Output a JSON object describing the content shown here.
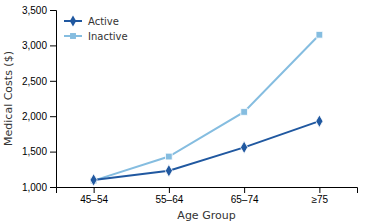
{
  "chart_data": {
    "type": "line",
    "xlabel": "Age Group",
    "ylabel": "Medical Costs ($)",
    "categories": [
      "45–54",
      "55–64",
      "65–74",
      "≥75"
    ],
    "series": [
      {
        "name": "Active",
        "color": "#2058a0",
        "marker": "diamond",
        "values": [
          1100,
          1230,
          1560,
          1930
        ]
      },
      {
        "name": "Inactive",
        "color": "#85bde0",
        "marker": "square",
        "values": [
          1090,
          1430,
          2060,
          3150
        ]
      }
    ],
    "ylim": [
      1000,
      3500
    ],
    "yticks": [
      {
        "value": 1000,
        "label": "1,000"
      },
      {
        "value": 1500,
        "label": "1,500"
      },
      {
        "value": 2000,
        "label": "2,000"
      },
      {
        "value": 2500,
        "label": "2,500"
      },
      {
        "value": 3000,
        "label": "3,000"
      },
      {
        "value": 3500,
        "label": "3,500"
      }
    ],
    "legend": "upper left",
    "grid": false
  }
}
